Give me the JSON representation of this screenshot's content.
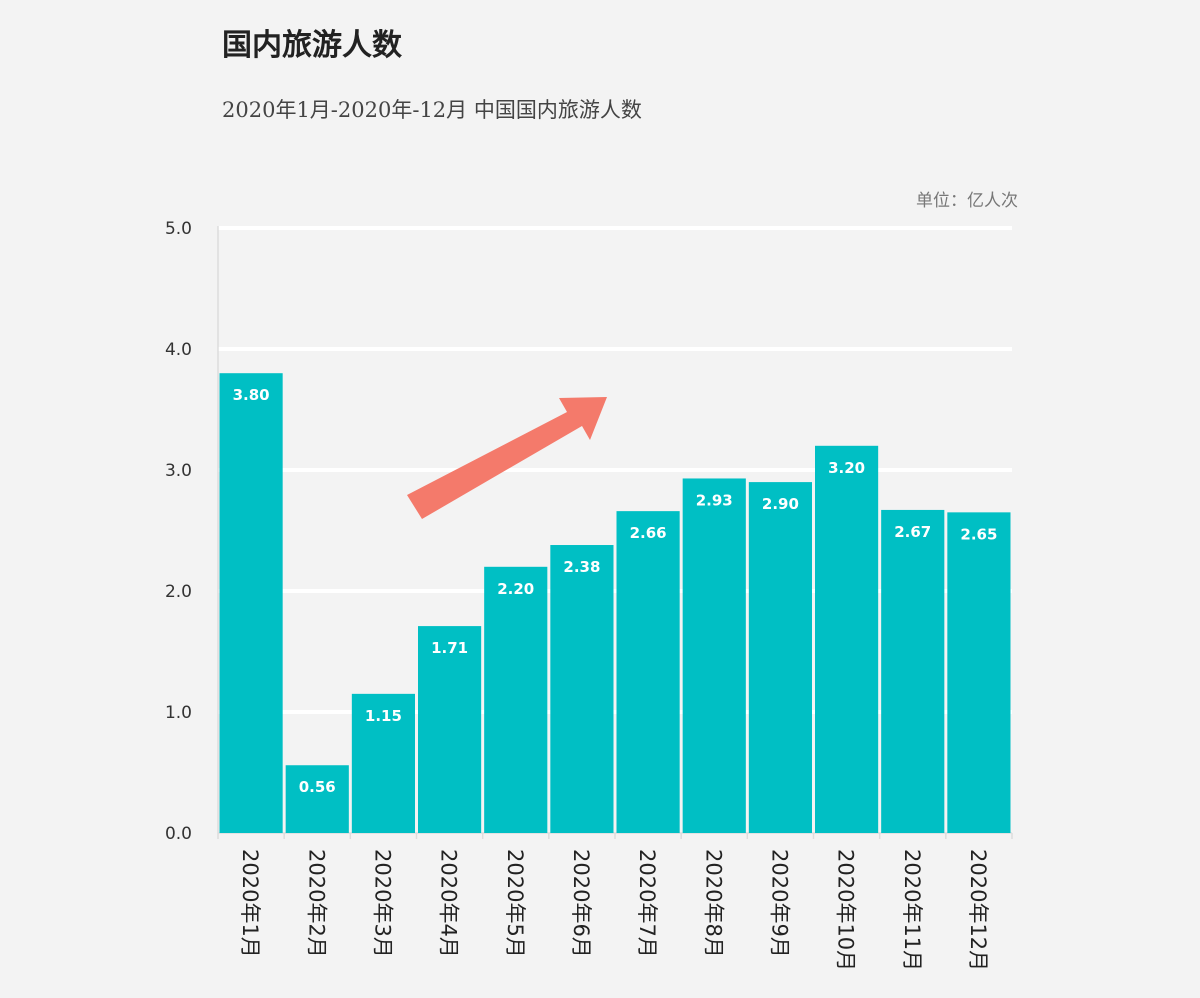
{
  "header": {
    "title": "国内旅游人数",
    "subtitle": "2020年1月-2020年-12月 中国国内旅游人数",
    "unit": "单位：亿人次"
  },
  "colors": {
    "bar": "#00bfc4",
    "arrow": "#f47a6b",
    "grid": "#ffffff",
    "axis": "#dddddd"
  },
  "chart_data": {
    "type": "bar",
    "title": "国内旅游人数",
    "subtitle": "2020年1月-2020年-12月 中国国内旅游人数",
    "ylabel": "单位：亿人次",
    "categories": [
      "2020年1月",
      "2020年2月",
      "2020年3月",
      "2020年4月",
      "2020年5月",
      "2020年6月",
      "2020年7月",
      "2020年8月",
      "2020年9月",
      "2020年10月",
      "2020年11月",
      "2020年12月"
    ],
    "values": [
      3.8,
      0.56,
      1.15,
      1.71,
      2.2,
      2.38,
      2.66,
      2.93,
      2.9,
      3.2,
      2.67,
      2.65
    ],
    "value_labels": [
      "3.80",
      "0.56",
      "1.15",
      "1.71",
      "2.20",
      "2.38",
      "2.66",
      "2.93",
      "2.90",
      "3.20",
      "2.67",
      "2.65"
    ],
    "ylim": [
      0,
      5
    ],
    "yticks": [
      "0.0",
      "1.0",
      "2.0",
      "3.0",
      "4.0",
      "5.0"
    ],
    "grid": true,
    "annotations": [
      {
        "type": "arrow",
        "direction": "up-right"
      }
    ]
  }
}
